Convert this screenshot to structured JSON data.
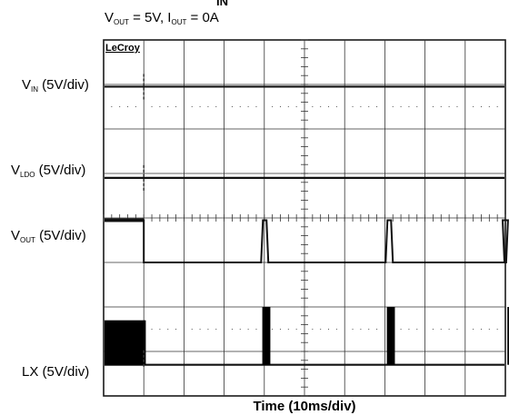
{
  "chart_data": {
    "type": "line",
    "title": "VOUT = 5V, IOUT = 0A",
    "title_parts": {
      "vout_label_main": "V",
      "vout_label_sub": "OUT",
      "vout_value": " = 5V, I",
      "iout_label_sub": "OUT",
      "iout_value": " = 0A"
    },
    "header_fragment": "IN",
    "brand": "LeCroy",
    "xlabel": "Time (10ms/div)",
    "x_divisions": 10,
    "y_divisions": 8,
    "grid": true,
    "channels": [
      {
        "name": "VIN (5V/div)",
        "main": "V",
        "sub": "IN",
        "tail": " (5V/div)"
      },
      {
        "name": "VLDO (5V/div)",
        "main": "V",
        "sub": "LDO",
        "tail": " (5V/div)"
      },
      {
        "name": "VOUT (5V/div)",
        "main": "V",
        "sub": "OUT",
        "tail": " (5V/div)"
      },
      {
        "name": "LX (5V/div)",
        "main": "LX",
        "sub": "",
        "tail": " (5V/div)"
      }
    ],
    "series": [
      {
        "name": "VIN (5V/div)",
        "trace_div": 1.05,
        "x": [
          0,
          1,
          2,
          3,
          4,
          5,
          6,
          7,
          8,
          9,
          10
        ],
        "y": [
          5,
          5,
          5,
          5,
          5,
          5,
          5,
          5,
          5,
          5,
          5
        ]
      },
      {
        "name": "VLDO (5V/div)",
        "trace_div": 3.1,
        "x": [
          0,
          1,
          2,
          3,
          4,
          5,
          6,
          7,
          8,
          9,
          10
        ],
        "y": [
          5,
          5,
          5,
          5,
          5,
          5,
          5,
          5,
          5,
          5,
          5
        ]
      },
      {
        "name": "VOUT (5V/div)",
        "high_div": 4.05,
        "low_div": 5.0,
        "start_high_until_div": 1.0,
        "pulses_div": [
          [
            3.92,
            4.1
          ],
          [
            7.02,
            7.2
          ],
          [
            10.02,
            10.2
          ]
        ]
      },
      {
        "name": "LX (5V/div)",
        "base_div": 7.3,
        "burst_top_div": 6.0,
        "initial_block_div": [
          0,
          1.05,
          6.3
        ],
        "bursts_div": [
          [
            3.95,
            4.15
          ],
          [
            7.05,
            7.25
          ],
          [
            10.05,
            10.25
          ]
        ]
      }
    ]
  }
}
